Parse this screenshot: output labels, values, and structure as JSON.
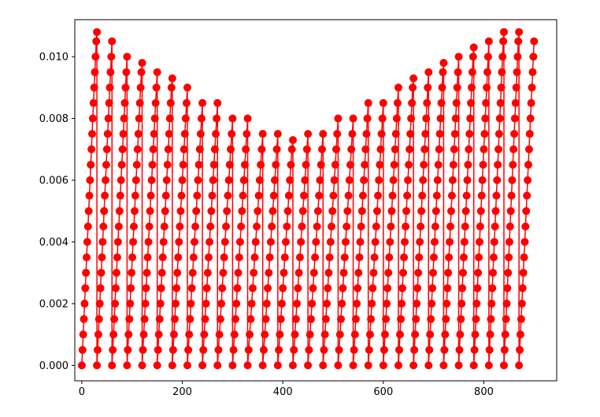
{
  "chart_data": {
    "type": "line",
    "markers": true,
    "color": "#ff0000",
    "description": "",
    "x_range": [
      0,
      900
    ],
    "xlim": [
      -14,
      945
    ],
    "ylim": [
      -0.0005,
      0.0112
    ],
    "x_ticks": [
      0,
      200,
      400,
      600,
      800
    ],
    "x_tick_labels": [
      "0",
      "200",
      "400",
      "600",
      "800"
    ],
    "y_ticks": [
      0.0,
      0.002,
      0.004,
      0.006,
      0.008,
      0.01
    ],
    "y_tick_labels": [
      "0.000",
      "0.002",
      "0.004",
      "0.006",
      "0.008",
      "0.010"
    ],
    "grid": false,
    "legend": false,
    "title": "",
    "xlabel": "",
    "ylabel": "",
    "series": [
      {
        "cycle_starts": [
          0,
          30,
          60,
          90,
          120,
          150,
          180,
          210,
          240,
          270,
          300,
          330,
          360,
          390,
          420,
          450,
          480,
          510,
          540,
          570,
          600,
          630,
          660,
          690,
          720,
          750,
          780,
          810,
          840,
          870
        ],
        "cycle_peaks": [
          0.0108,
          0.0105,
          0.0102,
          0.0098,
          0.0095,
          0.0093,
          0.009,
          0.0087,
          0.0085,
          0.0082,
          0.008,
          0.0077,
          0.0075,
          0.0073,
          0.0075,
          0.0077,
          0.008,
          0.0082,
          0.0085,
          0.0087,
          0.009,
          0.0093,
          0.0095,
          0.0098,
          0.01,
          0.0103,
          0.0106,
          0.0108,
          0.0108,
          0.0105
        ],
        "step": 0.0005,
        "end_x": 900
      }
    ]
  }
}
